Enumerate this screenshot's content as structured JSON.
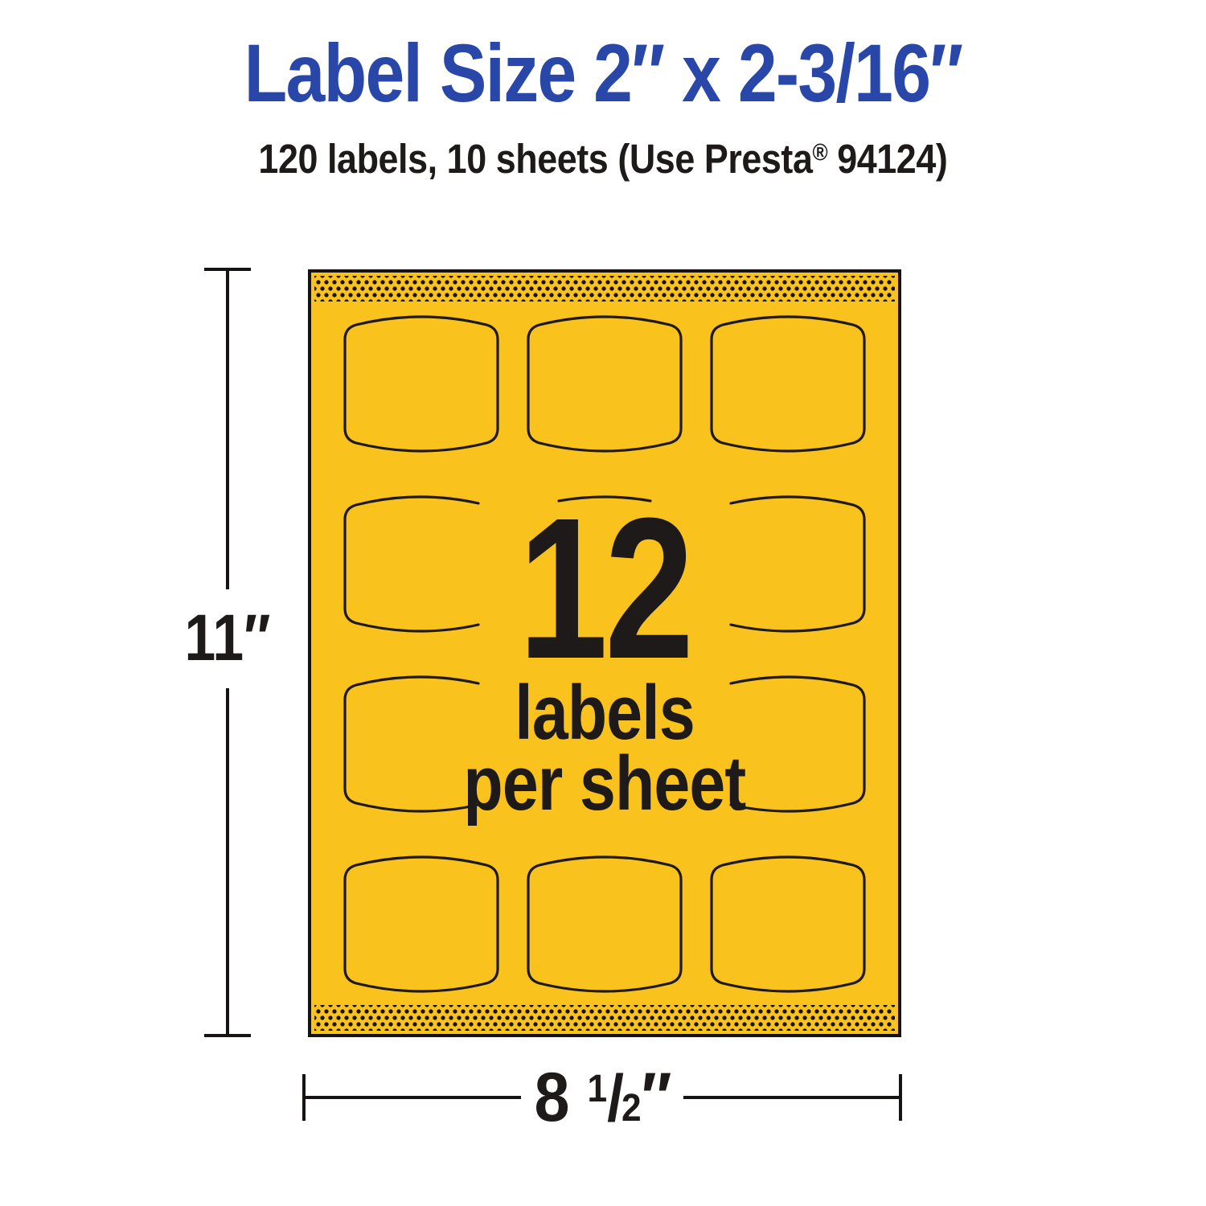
{
  "header": {
    "title": "Label Size 2″ x 2-3/16″",
    "subtitle_text": "120 labels, 10 sheets (Use Presta",
    "subtitle_reg_mark": "®",
    "subtitle_tail": " 94124)"
  },
  "sheet": {
    "big_count": "12",
    "line1": "labels",
    "line2": "per sheet",
    "rows": 4,
    "cols": 3,
    "outline_grid": [
      [
        "full",
        "full",
        "full"
      ],
      [
        "left",
        "frag",
        "right"
      ],
      [
        "left",
        "none",
        "right"
      ],
      [
        "full",
        "full",
        "full"
      ]
    ]
  },
  "dims": {
    "height": "11″",
    "width_int": "8",
    "width_frac_num": "1",
    "width_frac_sep": "/",
    "width_frac_den": "2",
    "width_inch_mark": "″"
  },
  "colors": {
    "title_blue": "#2847A8",
    "sheet_yellow": "#F9C21D",
    "ink_black": "#1D1A19"
  }
}
